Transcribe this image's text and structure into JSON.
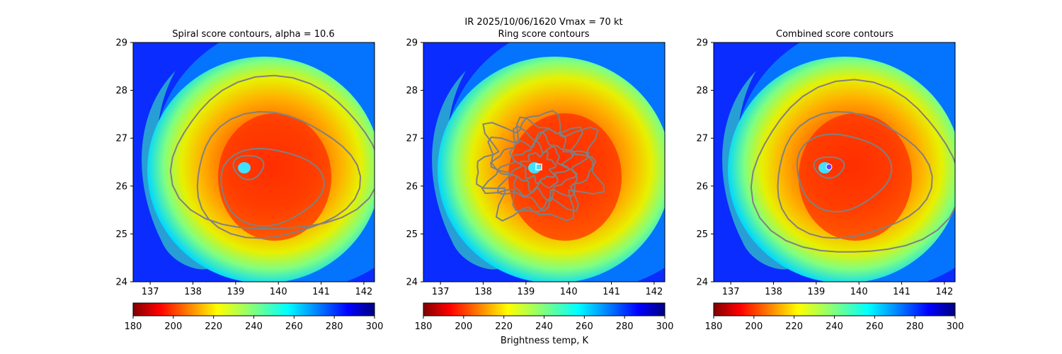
{
  "suptitle_line1": "IR  2025/10/06/1620    Vmax = 70 kt",
  "colorbar_label": "Brightness temp, K",
  "chart_data": [
    {
      "type": "heatmap",
      "title": "Spiral score contours, alpha = 10.6",
      "x_ticks": [
        137,
        138,
        139,
        140,
        141,
        142
      ],
      "y_ticks": [
        24,
        25,
        26,
        27,
        28,
        29
      ],
      "xlim": [
        136.6,
        142.25
      ],
      "ylim": [
        24,
        29
      ],
      "storm_center": [
        139.3,
        26.4
      ],
      "marker": "none",
      "contour_color": "#808080",
      "contours_lonlat": [
        [
          [
            139.3,
            26.4
          ],
          [
            0.35,
            0.25
          ]
        ],
        [
          [
            139.8,
            26.0
          ],
          [
            1.2,
            0.8
          ]
        ],
        [
          [
            139.9,
            26.2
          ],
          [
            1.9,
            1.3
          ]
        ],
        [
          [
            139.9,
            26.6
          ],
          [
            2.4,
            1.6
          ]
        ]
      ],
      "colorbar": {
        "min": 180,
        "max": 300,
        "ticks": [
          180,
          200,
          220,
          240,
          260,
          280,
          300
        ]
      }
    },
    {
      "type": "heatmap",
      "title": "Ring score contours",
      "x_ticks": [
        137,
        138,
        139,
        140,
        141,
        142
      ],
      "y_ticks": [
        24,
        25,
        26,
        27,
        28,
        29
      ],
      "xlim": [
        136.6,
        142.25
      ],
      "ylim": [
        24,
        29
      ],
      "storm_center": [
        139.3,
        26.4
      ],
      "marker": "square",
      "contour_color": "#808080",
      "colorbar": {
        "min": 180,
        "max": 300,
        "ticks": [
          180,
          200,
          220,
          240,
          260,
          280,
          300
        ]
      }
    },
    {
      "type": "heatmap",
      "title": "Combined score contours",
      "x_ticks": [
        137,
        138,
        139,
        140,
        141,
        142
      ],
      "y_ticks": [
        24,
        25,
        26,
        27,
        28,
        29
      ],
      "xlim": [
        136.6,
        142.25
      ],
      "ylim": [
        24,
        29
      ],
      "storm_center": [
        139.3,
        26.4
      ],
      "marker": "circle",
      "contour_color": "#808080",
      "contours_lonlat": [
        [
          [
            139.3,
            26.4
          ],
          [
            0.35,
            0.22
          ]
        ],
        [
          [
            139.6,
            26.3
          ],
          [
            1.1,
            0.8
          ]
        ],
        [
          [
            139.8,
            26.2
          ],
          [
            1.8,
            1.3
          ]
        ],
        [
          [
            139.9,
            26.3
          ],
          [
            2.4,
            1.8
          ]
        ]
      ],
      "colorbar": {
        "min": 180,
        "max": 300,
        "ticks": [
          180,
          200,
          220,
          240,
          260,
          280,
          300
        ]
      }
    }
  ]
}
